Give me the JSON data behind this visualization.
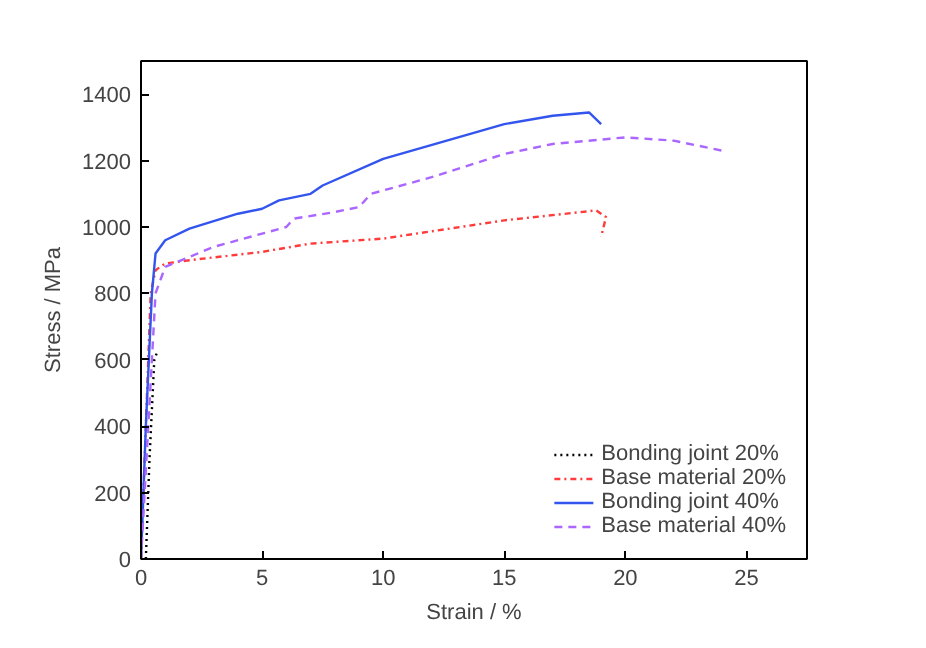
{
  "chart_data": {
    "type": "line",
    "xlabel": "Strain / %",
    "ylabel": "Stress / MPa",
    "xlim": [
      0,
      27.5
    ],
    "ylim": [
      0,
      1500
    ],
    "xticks": [
      0,
      5,
      10,
      15,
      20,
      25
    ],
    "yticks": [
      0,
      200,
      400,
      600,
      800,
      1000,
      1200,
      1400
    ],
    "grid": false,
    "legend": "bottom right",
    "marker": "none",
    "series": [
      {
        "name": "Bonding joint 20%",
        "color": "#000000",
        "line_style": "dotted",
        "x": [
          0.2,
          0.35,
          0.55,
          0.65
        ],
        "values": [
          0,
          300,
          600,
          620
        ]
      },
      {
        "name": "Base material 20%",
        "color": "#ff3b3b",
        "line_style": "dashdot",
        "x": [
          0,
          0.2,
          0.4,
          0.6,
          1,
          2,
          5,
          7,
          10,
          15,
          18.8,
          19.2,
          19
        ],
        "values": [
          0,
          400,
          800,
          870,
          890,
          900,
          925,
          950,
          965,
          1020,
          1050,
          1030,
          970
        ]
      },
      {
        "name": "Bonding joint 40%",
        "color": "#3355ee",
        "line_style": "solid",
        "x": [
          0,
          0.2,
          0.45,
          0.6,
          1,
          2,
          4,
          5,
          5.7,
          7,
          7.5,
          10,
          15,
          17,
          18.5,
          19
        ],
        "values": [
          0,
          400,
          800,
          920,
          960,
          995,
          1040,
          1055,
          1080,
          1100,
          1125,
          1205,
          1310,
          1335,
          1345,
          1310
        ]
      },
      {
        "name": "Base material 40%",
        "color": "#aa66ff",
        "line_style": "dashed",
        "x": [
          0,
          0.3,
          0.6,
          1,
          3,
          5,
          6,
          6.3,
          8,
          9,
          9.5,
          12,
          15,
          17,
          20,
          22,
          24
        ],
        "values": [
          0,
          400,
          800,
          880,
          940,
          980,
          1000,
          1025,
          1045,
          1060,
          1100,
          1150,
          1220,
          1250,
          1270,
          1260,
          1230
        ]
      }
    ]
  }
}
